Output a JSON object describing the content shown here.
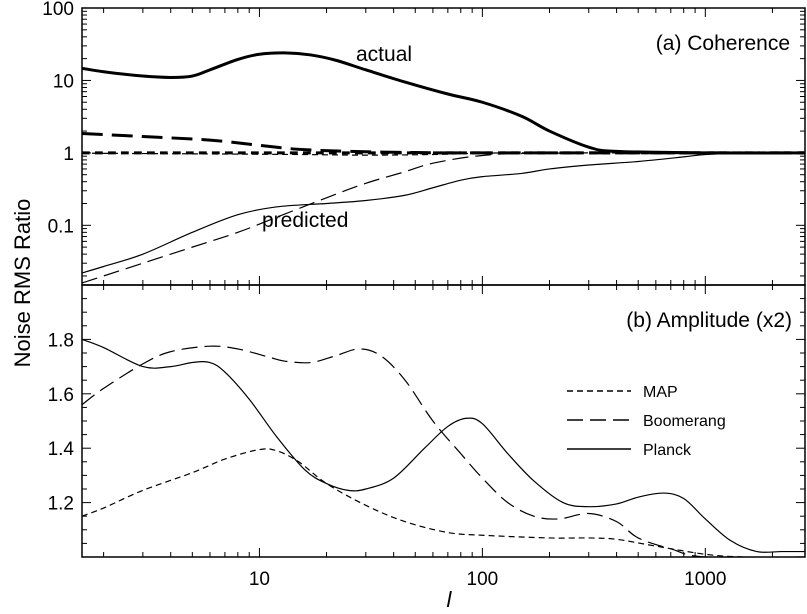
{
  "chart_data": {
    "type": "line",
    "xlabel": "l",
    "ylabel": "Noise RMS Ratio",
    "x_scale": "log",
    "xlim": [
      1.6,
      2800
    ],
    "x_ticks": [
      10,
      100,
      1000
    ],
    "x_tick_labels": [
      "10",
      "100",
      "1000"
    ],
    "legend": [
      {
        "name": "MAP",
        "style": "short-dash"
      },
      {
        "name": "Boomerang",
        "style": "long-dash"
      },
      {
        "name": "Planck",
        "style": "solid"
      }
    ],
    "panels": [
      {
        "id": "a",
        "title": "(a) Coherence",
        "y_scale": "log",
        "ylim": [
          0.015,
          100
        ],
        "y_ticks": [
          0.1,
          1,
          10,
          100
        ],
        "y_tick_labels": [
          "0.1",
          "1",
          "10",
          "100"
        ],
        "annotations": [
          "actual",
          "predicted"
        ],
        "series": [
          {
            "name": "Planck",
            "group": "actual",
            "style": "solid",
            "weight": "thick",
            "points": [
              [
                1.6,
                14.7
              ],
              [
                2,
                13.2
              ],
              [
                3,
                11.5
              ],
              [
                4,
                11
              ],
              [
                5,
                11.5
              ],
              [
                6,
                14
              ],
              [
                8,
                19.5
              ],
              [
                10,
                23
              ],
              [
                13,
                24
              ],
              [
                17,
                22.5
              ],
              [
                22,
                19
              ],
              [
                30,
                14
              ],
              [
                45,
                9.5
              ],
              [
                70,
                6.5
              ],
              [
                100,
                5
              ],
              [
                150,
                3.2
              ],
              [
                200,
                2.0
              ],
              [
                300,
                1.2
              ],
              [
                400,
                1.05
              ],
              [
                1000,
                1.0
              ],
              [
                2800,
                1.0
              ]
            ]
          },
          {
            "name": "Boomerang",
            "group": "actual",
            "style": "long-dash",
            "weight": "thick",
            "points": [
              [
                1.6,
                1.85
              ],
              [
                3,
                1.68
              ],
              [
                6,
                1.5
              ],
              [
                10,
                1.27
              ],
              [
                15,
                1.12
              ],
              [
                25,
                1.05
              ],
              [
                50,
                1.01
              ],
              [
                100,
                1.0
              ],
              [
                2800,
                1.0
              ]
            ]
          },
          {
            "name": "MAP",
            "group": "actual",
            "style": "short-dash",
            "weight": "thick",
            "points": [
              [
                1.6,
                1.0
              ],
              [
                2800,
                1.0
              ]
            ]
          },
          {
            "name": "MAP",
            "group": "predicted",
            "style": "short-dash",
            "weight": "thin",
            "points": [
              [
                1.6,
                0.99
              ],
              [
                5,
                0.97
              ],
              [
                15,
                0.95
              ],
              [
                30,
                0.93
              ],
              [
                60,
                0.95
              ],
              [
                100,
                0.99
              ],
              [
                200,
                1.0
              ],
              [
                2800,
                1.0
              ]
            ]
          },
          {
            "name": "Boomerang",
            "group": "predicted",
            "style": "long-dash",
            "weight": "thin",
            "points": [
              [
                1.6,
                0.016
              ],
              [
                2,
                0.02
              ],
              [
                3,
                0.03
              ],
              [
                5,
                0.05
              ],
              [
                8,
                0.08
              ],
              [
                12,
                0.13
              ],
              [
                20,
                0.24
              ],
              [
                30,
                0.38
              ],
              [
                45,
                0.55
              ],
              [
                60,
                0.72
              ],
              [
                100,
                0.92
              ],
              [
                200,
                0.99
              ],
              [
                2800,
                1.0
              ]
            ]
          },
          {
            "name": "Planck",
            "group": "predicted",
            "style": "solid",
            "weight": "thin",
            "points": [
              [
                1.6,
                0.022
              ],
              [
                2,
                0.027
              ],
              [
                3,
                0.04
              ],
              [
                5,
                0.08
              ],
              [
                8,
                0.14
              ],
              [
                12,
                0.18
              ],
              [
                20,
                0.2
              ],
              [
                30,
                0.22
              ],
              [
                45,
                0.26
              ],
              [
                60,
                0.33
              ],
              [
                80,
                0.42
              ],
              [
                100,
                0.47
              ],
              [
                150,
                0.52
              ],
              [
                200,
                0.6
              ],
              [
                300,
                0.68
              ],
              [
                500,
                0.76
              ],
              [
                800,
                0.88
              ],
              [
                1000,
                0.95
              ],
              [
                1500,
                1.0
              ],
              [
                2800,
                1.0
              ]
            ]
          }
        ]
      },
      {
        "id": "b",
        "title": "(b) Amplitude (x2)",
        "y_scale": "linear",
        "ylim": [
          1.0,
          2.0
        ],
        "y_ticks": [
          1.2,
          1.4,
          1.6,
          1.8
        ],
        "y_tick_labels": [
          "1.2",
          "1.4",
          "1.6",
          "1.8"
        ],
        "series": [
          {
            "name": "MAP",
            "style": "short-dash",
            "points": [
              [
                1.6,
                1.15
              ],
              [
                2,
                1.18
              ],
              [
                3,
                1.245
              ],
              [
                5,
                1.31
              ],
              [
                7,
                1.36
              ],
              [
                10,
                1.395
              ],
              [
                12,
                1.39
              ],
              [
                15,
                1.35
              ],
              [
                20,
                1.27
              ],
              [
                30,
                1.19
              ],
              [
                45,
                1.13
              ],
              [
                70,
                1.09
              ],
              [
                100,
                1.08
              ],
              [
                200,
                1.07
              ],
              [
                300,
                1.07
              ],
              [
                400,
                1.065
              ],
              [
                600,
                1.04
              ],
              [
                1000,
                1.01
              ],
              [
                1500,
                1.0
              ],
              [
                2800,
                1.0
              ]
            ]
          },
          {
            "name": "Boomerang",
            "style": "long-dash",
            "points": [
              [
                1.6,
                1.56
              ],
              [
                2,
                1.62
              ],
              [
                3,
                1.71
              ],
              [
                4,
                1.755
              ],
              [
                6,
                1.775
              ],
              [
                8,
                1.765
              ],
              [
                11,
                1.735
              ],
              [
                13,
                1.72
              ],
              [
                17,
                1.715
              ],
              [
                22,
                1.74
              ],
              [
                28,
                1.765
              ],
              [
                35,
                1.74
              ],
              [
                45,
                1.65
              ],
              [
                60,
                1.5
              ],
              [
                80,
                1.38
              ],
              [
                100,
                1.29
              ],
              [
                130,
                1.2
              ],
              [
                170,
                1.15
              ],
              [
                220,
                1.14
              ],
              [
                300,
                1.16
              ],
              [
                400,
                1.13
              ],
              [
                500,
                1.07
              ],
              [
                700,
                1.03
              ],
              [
                1000,
                1.0
              ],
              [
                2800,
                1.0
              ]
            ]
          },
          {
            "name": "Planck",
            "style": "solid",
            "points": [
              [
                1.6,
                1.8
              ],
              [
                2,
                1.77
              ],
              [
                3,
                1.7
              ],
              [
                4,
                1.7
              ],
              [
                5,
                1.715
              ],
              [
                6,
                1.715
              ],
              [
                7,
                1.68
              ],
              [
                9,
                1.58
              ],
              [
                12,
                1.44
              ],
              [
                16,
                1.32
              ],
              [
                20,
                1.27
              ],
              [
                25,
                1.245
              ],
              [
                30,
                1.25
              ],
              [
                40,
                1.29
              ],
              [
                55,
                1.4
              ],
              [
                70,
                1.48
              ],
              [
                85,
                1.51
              ],
              [
                100,
                1.49
              ],
              [
                130,
                1.38
              ],
              [
                170,
                1.28
              ],
              [
                230,
                1.2
              ],
              [
                300,
                1.185
              ],
              [
                400,
                1.195
              ],
              [
                500,
                1.22
              ],
              [
                650,
                1.235
              ],
              [
                800,
                1.215
              ],
              [
                1000,
                1.14
              ],
              [
                1300,
                1.06
              ],
              [
                1700,
                1.02
              ],
              [
                2200,
                1.02
              ],
              [
                2800,
                1.02
              ]
            ]
          }
        ]
      }
    ]
  }
}
